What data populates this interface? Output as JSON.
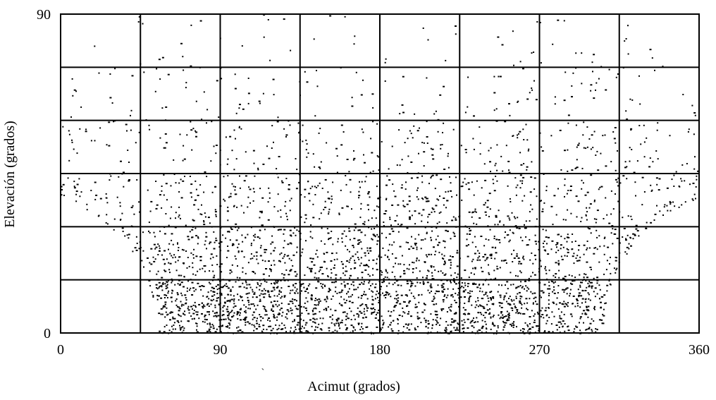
{
  "chart_data": {
    "type": "scatter",
    "title": "",
    "xlabel": "Acimut (grados)",
    "ylabel": "Elevación (grados)",
    "xlim": [
      0,
      360
    ],
    "ylim": [
      0,
      90
    ],
    "x_ticks": [
      0,
      90,
      180,
      270,
      360
    ],
    "y_ticks": [
      0,
      90
    ],
    "x_tick_labels": [
      "0",
      "90",
      "180",
      "270",
      "360"
    ],
    "y_tick_labels": [
      "0",
      "90"
    ],
    "grid": true,
    "grid_x": [
      45,
      90,
      135,
      180,
      225,
      270,
      315
    ],
    "grid_y": [
      15,
      30,
      45,
      60,
      75
    ],
    "annotation": "`",
    "marker_color": "#000000",
    "visibility_envelope": {
      "description_shape": "point density boundary (lower elevation cutoff) as azimuth/elevation pairs",
      "left": [
        [
          0,
          38
        ],
        [
          10,
          36
        ],
        [
          20,
          33
        ],
        [
          30,
          29
        ],
        [
          38,
          25
        ],
        [
          44,
          20
        ],
        [
          49,
          15
        ],
        [
          52,
          10
        ],
        [
          54,
          5
        ],
        [
          55,
          0
        ]
      ],
      "right": [
        [
          305,
          0
        ],
        [
          306,
          5
        ],
        [
          308,
          10
        ],
        [
          311,
          15
        ],
        [
          316,
          20
        ],
        [
          322,
          25
        ],
        [
          330,
          29
        ],
        [
          340,
          33
        ],
        [
          350,
          36
        ],
        [
          360,
          38
        ]
      ]
    },
    "series": [
      {
        "density_by_band": [
          {
            "elevation": [
              0,
              15
            ],
            "points": 1600
          },
          {
            "elevation": [
              15,
              30
            ],
            "points": 900
          },
          {
            "elevation": [
              30,
              45
            ],
            "points": 600
          },
          {
            "elevation": [
              45,
              60
            ],
            "points": 300
          },
          {
            "elevation": [
              60,
              75
            ],
            "points": 130
          },
          {
            "elevation": [
              75,
              90
            ],
            "points": 60
          }
        ]
      }
    ]
  }
}
